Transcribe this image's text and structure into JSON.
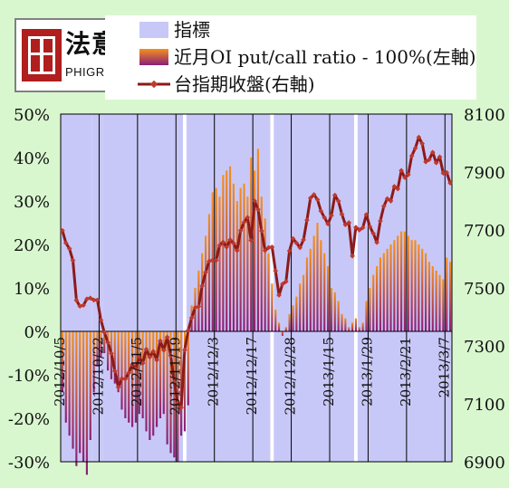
{
  "brand": {
    "mark": "法意",
    "sub": "PHIGROUP"
  },
  "colors": {
    "background": "#d9f7cf",
    "band": "#c8c8f8",
    "ratio_pos": "#f5901e",
    "ratio_neg": "#8a1e78",
    "index_line": "#8b1a1a",
    "index_marker": "#c0392b"
  },
  "chart_data": {
    "type": "bar",
    "legend": [
      {
        "label": "指標",
        "kind": "band"
      },
      {
        "label": "近月OI put/call ratio - 100%(左軸)",
        "kind": "bar"
      },
      {
        "label": "台指期收盤(右軸)",
        "kind": "line"
      }
    ],
    "y_left": {
      "ticks": [
        "50%",
        "40%",
        "30%",
        "20%",
        "10%",
        "0%",
        "-10%",
        "-20%",
        "-30%"
      ],
      "min": -30,
      "max": 50
    },
    "y_right": {
      "ticks": [
        "8100",
        "7900",
        "7700",
        "7500",
        "7300",
        "7100",
        "6900"
      ],
      "min": 6900,
      "max": 8100
    },
    "x_labels": [
      "2012/10/5",
      "2012/10/22",
      "2012/11/5",
      "2012/11/19",
      "2012/12/3",
      "2012/12/17",
      "2012/12/28",
      "2013/1/15",
      "2013/1/29",
      "2013/2/21",
      "2013/3/7"
    ],
    "x_label_index": [
      0,
      11,
      22,
      33,
      44,
      55,
      66,
      77,
      88,
      99,
      110
    ],
    "n": 112,
    "indicator_bands": [
      [
        0,
        8
      ],
      [
        9,
        11
      ],
      [
        12,
        34
      ],
      [
        36,
        59
      ],
      [
        61,
        83
      ],
      [
        85,
        111
      ]
    ],
    "put_call_ratio_minus_100": [
      -14,
      -21,
      -24,
      -27,
      -31,
      -28,
      -30,
      -33,
      -25,
      -14,
      -8,
      -6,
      -5,
      -9,
      -11,
      -12,
      -14,
      -18,
      -20,
      -21,
      -22,
      -21,
      -19,
      -20,
      -23,
      -25,
      -24,
      -22,
      -20,
      -19,
      -26,
      -28,
      -29,
      -30,
      -24,
      -23,
      -17,
      6,
      10,
      14,
      18,
      22,
      27,
      32,
      33,
      31,
      36,
      37,
      38,
      34,
      30,
      33,
      34,
      31,
      40,
      37,
      42,
      31,
      26,
      18,
      11,
      5,
      2,
      -1,
      1,
      4,
      6,
      8,
      11,
      13,
      17,
      19,
      22,
      25,
      21,
      18,
      15,
      10,
      9,
      7,
      4,
      3,
      1,
      2,
      3,
      1,
      2,
      7,
      10,
      13,
      15,
      17,
      18,
      19,
      20,
      21,
      22,
      23,
      23,
      22,
      21,
      21,
      20,
      19,
      18,
      16,
      15,
      14,
      13,
      12,
      17,
      16
    ],
    "index_close": [
      7698,
      7655,
      7636,
      7595,
      7457,
      7437,
      7440,
      7462,
      7465,
      7458,
      7458,
      7389,
      7347,
      7312,
      7274,
      7213,
      7157,
      7187,
      7186,
      7207,
      7235,
      7221,
      7262,
      7240,
      7288,
      7261,
      7281,
      7251,
      7317,
      7285,
      7330,
      7266,
      7175,
      7104,
      7087,
      7286,
      7353,
      7397,
      7432,
      7436,
      7507,
      7554,
      7592,
      7596,
      7595,
      7647,
      7658,
      7641,
      7666,
      7654,
      7629,
      7698,
      7727,
      7743,
      7664,
      7800,
      7771,
      7697,
      7629,
      7639,
      7641,
      7559,
      7475,
      7513,
      7522,
      7628,
      7670,
      7655,
      7639,
      7666,
      7734,
      7810,
      7822,
      7805,
      7765,
      7743,
      7721,
      7750,
      7820,
      7800,
      7754,
      7718,
      7725,
      7610,
      7709,
      7700,
      7708,
      7753,
      7711,
      7688,
      7657,
      7731,
      7782,
      7808,
      7800,
      7850,
      7842,
      7905,
      7881,
      7891,
      7956,
      7982,
      8020,
      7998,
      7935,
      7943,
      7968,
      7932,
      7952,
      7896,
      7898,
      7862
    ]
  }
}
